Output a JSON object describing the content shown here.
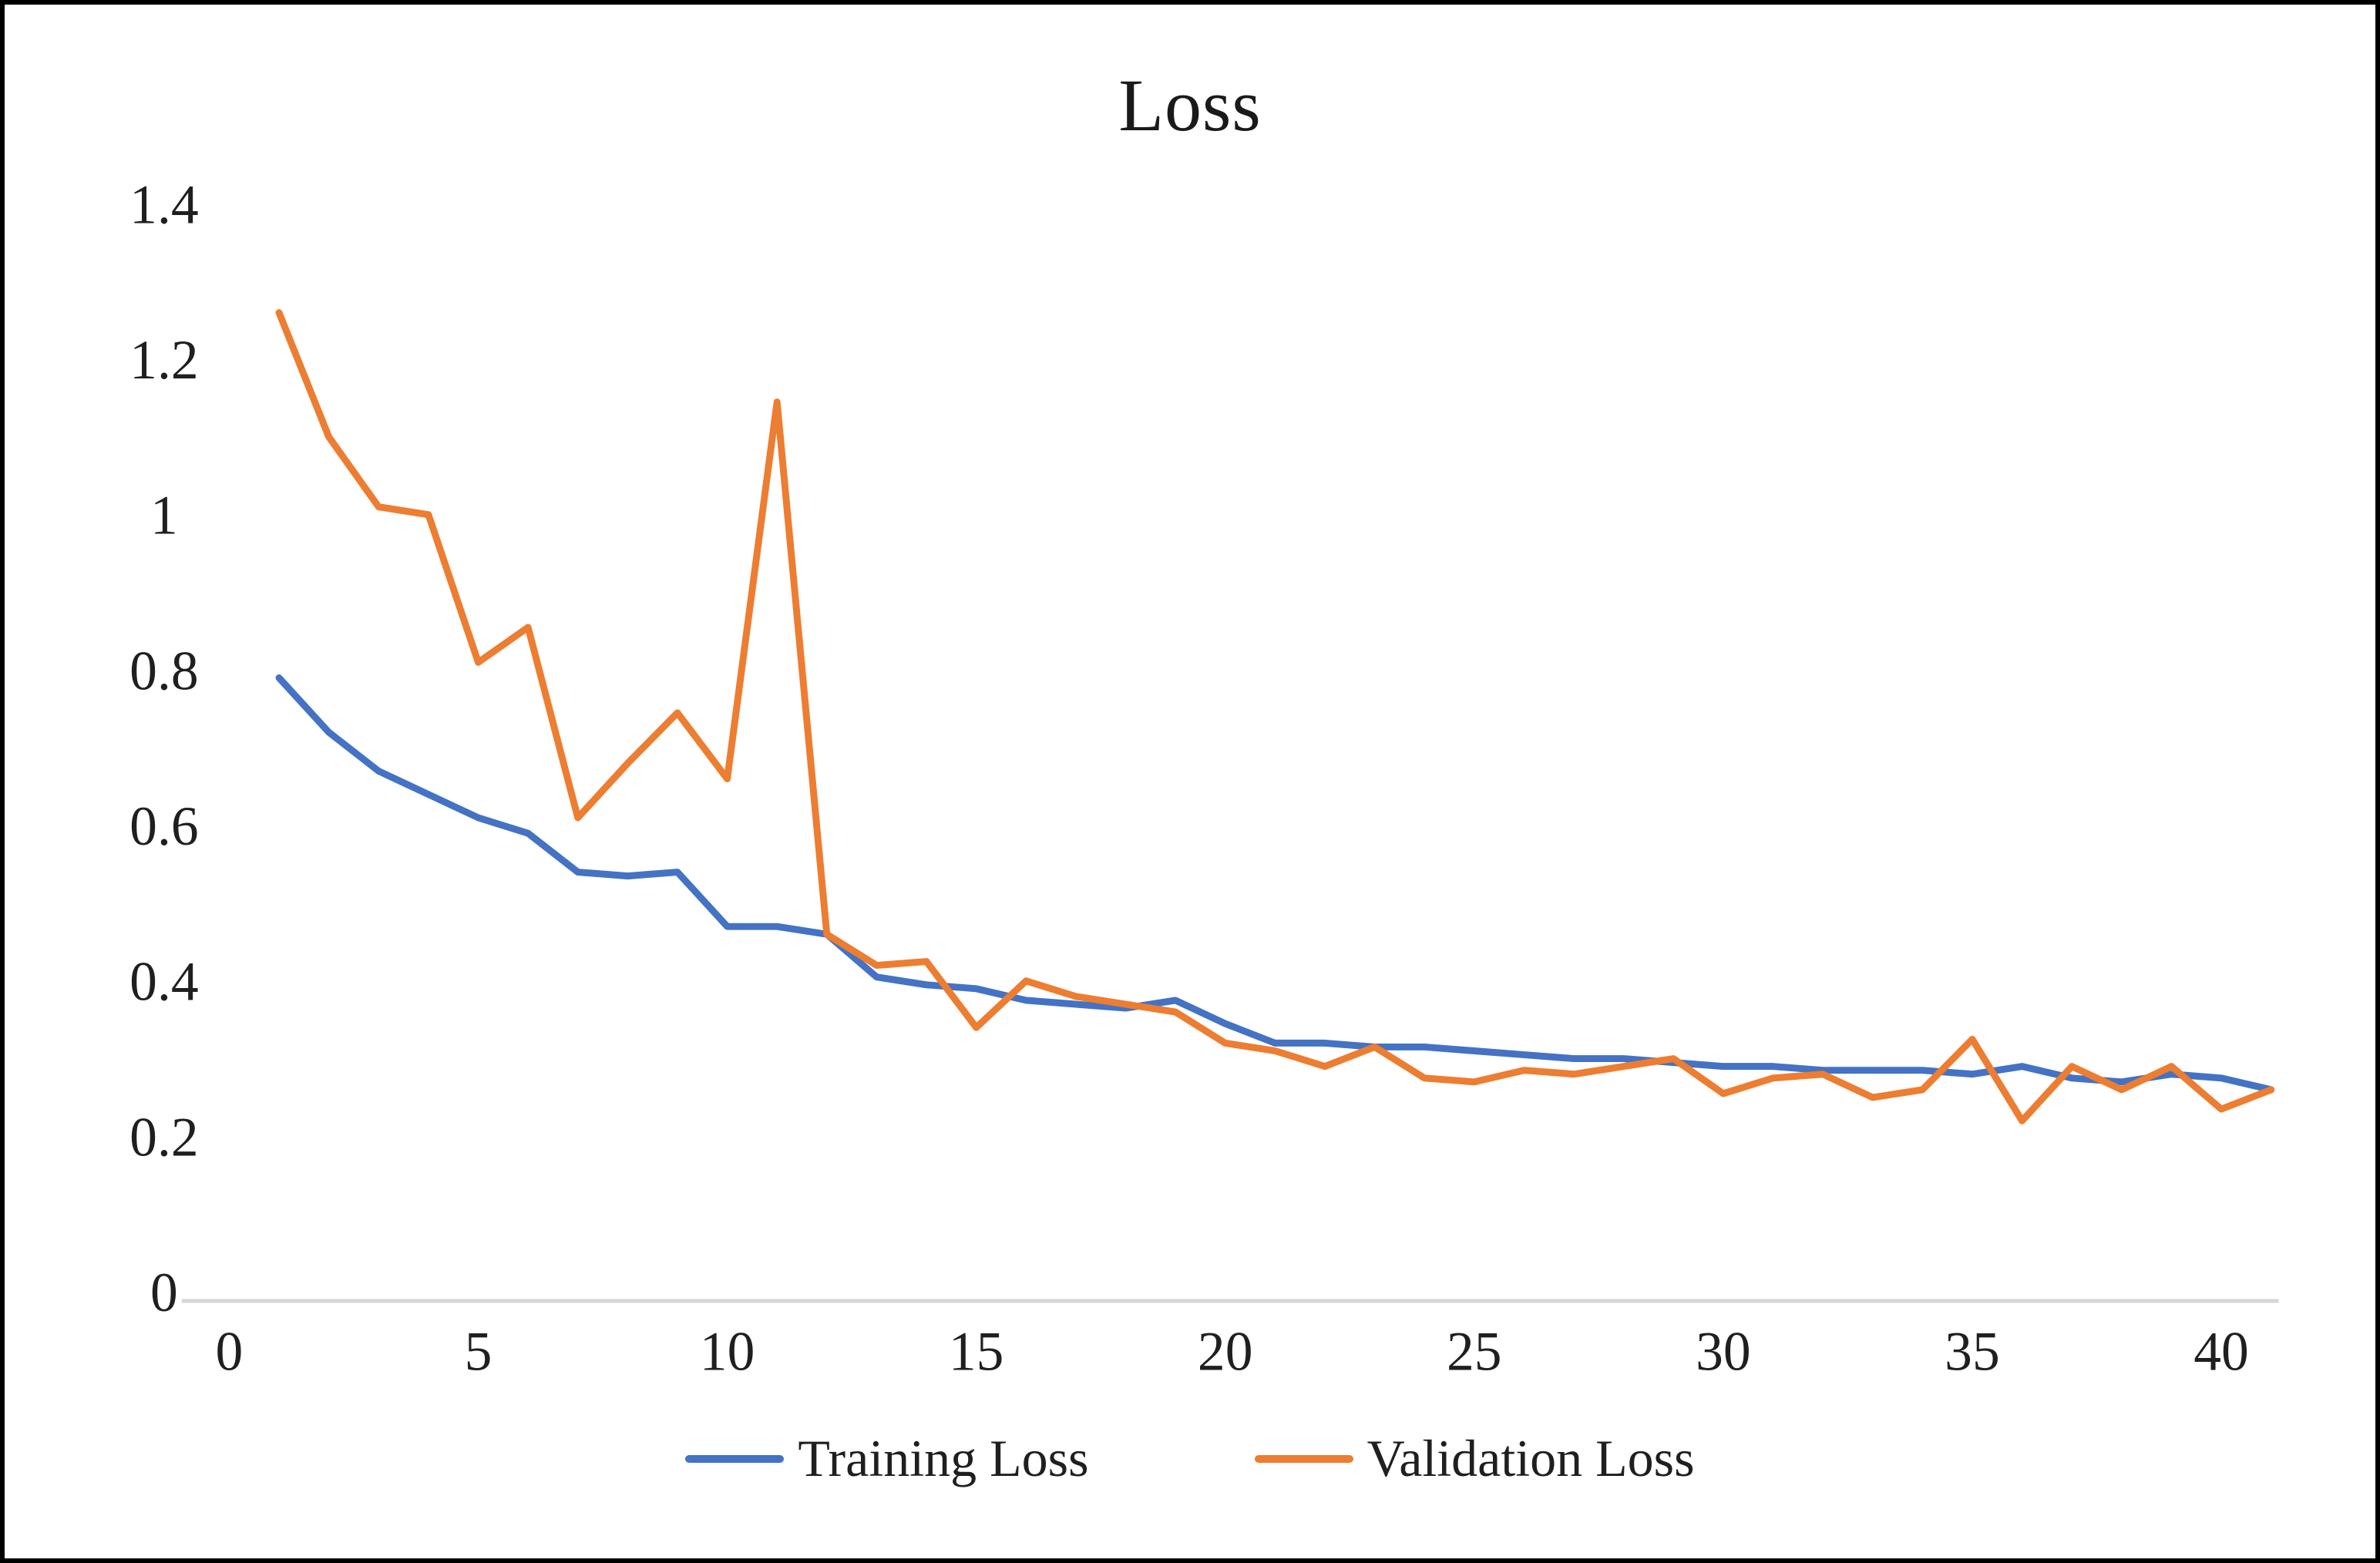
{
  "chart_data": {
    "type": "line",
    "title": "Loss",
    "xlabel": "",
    "ylabel": "",
    "xlim": [
      0,
      41.5
    ],
    "ylim": [
      0,
      1.4
    ],
    "grid": false,
    "legend_position": "bottom",
    "axis_line_color": "#d6d6d6",
    "text_color": "#1f1f1f",
    "x_tick_values": [
      0,
      5,
      10,
      15,
      20,
      25,
      30,
      35,
      40
    ],
    "x_tick_labels": [
      "0",
      "5",
      "10",
      "15",
      "20",
      "25",
      "30",
      "35",
      "40"
    ],
    "y_tick_values": [
      0,
      0.2,
      0.4,
      0.6,
      0.8,
      1,
      1.2,
      1.4
    ],
    "y_tick_labels": [
      "0",
      "0.2",
      "0.4",
      "0.6",
      "0.8",
      "1",
      "1.2",
      "1.4"
    ],
    "x": [
      1,
      2,
      3,
      4,
      5,
      6,
      7,
      8,
      9,
      10,
      11,
      12,
      13,
      14,
      15,
      16,
      17,
      18,
      19,
      20,
      21,
      22,
      23,
      24,
      25,
      26,
      27,
      28,
      29,
      30,
      31,
      32,
      33,
      34,
      35,
      36,
      37,
      38,
      39,
      40,
      41
    ],
    "series": [
      {
        "name": "Training Loss",
        "color": "#4472C4",
        "values": [
          0.79,
          0.72,
          0.67,
          0.64,
          0.61,
          0.59,
          0.54,
          0.535,
          0.54,
          0.47,
          0.47,
          0.46,
          0.405,
          0.395,
          0.39,
          0.375,
          0.37,
          0.365,
          0.375,
          0.345,
          0.32,
          0.32,
          0.315,
          0.315,
          0.31,
          0.305,
          0.3,
          0.3,
          0.295,
          0.29,
          0.29,
          0.285,
          0.285,
          0.285,
          0.28,
          0.29,
          0.275,
          0.27,
          0.28,
          0.275,
          0.26
        ]
      },
      {
        "name": "Validation Loss",
        "color": "#ED7D31",
        "values": [
          1.26,
          1.1,
          1.01,
          1.0,
          0.81,
          0.855,
          0.61,
          0.68,
          0.745,
          0.66,
          1.145,
          0.46,
          0.42,
          0.425,
          0.34,
          0.4,
          0.38,
          0.37,
          0.36,
          0.32,
          0.31,
          0.29,
          0.315,
          0.275,
          0.27,
          0.285,
          0.28,
          0.29,
          0.3,
          0.255,
          0.275,
          0.28,
          0.25,
          0.26,
          0.325,
          0.22,
          0.29,
          0.26,
          0.29,
          0.235,
          0.26
        ]
      }
    ]
  }
}
